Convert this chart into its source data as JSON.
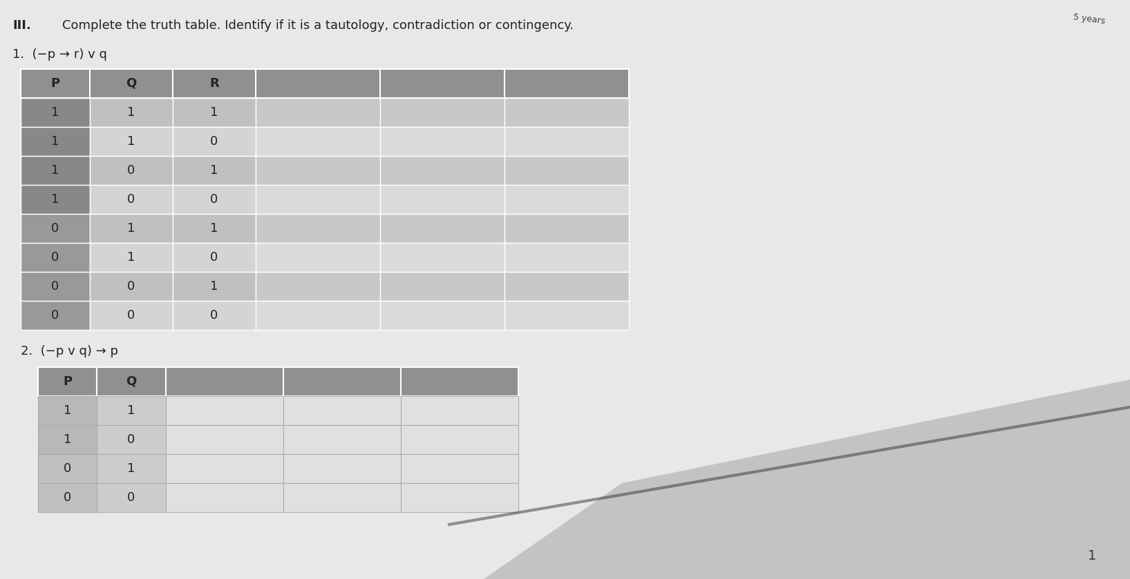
{
  "title_roman": "III.",
  "title_text": "Complete the truth table. Identify if it is a tautology, contradiction or contingency.",
  "problem1_label": "1.  (−p → r) v q",
  "problem2_label": "2.  (−p v q) → p",
  "table1": {
    "headers": [
      "P",
      "Q",
      "R",
      "",
      "",
      ""
    ],
    "num_empty_cols": 3,
    "rows": [
      [
        "1",
        "1",
        "1",
        "",
        "",
        ""
      ],
      [
        "1",
        "1",
        "0",
        "",
        "",
        ""
      ],
      [
        "1",
        "0",
        "1",
        "",
        "",
        ""
      ],
      [
        "1",
        "0",
        "0",
        "",
        "",
        ""
      ],
      [
        "0",
        "1",
        "1",
        "",
        "",
        ""
      ],
      [
        "0",
        "1",
        "0",
        "",
        "",
        ""
      ],
      [
        "0",
        "0",
        "1",
        "",
        "",
        ""
      ],
      [
        "0",
        "0",
        "0",
        "",
        "",
        ""
      ]
    ]
  },
  "table2": {
    "headers": [
      "P",
      "Q",
      "",
      "",
      ""
    ],
    "num_empty_cols": 3,
    "rows": [
      [
        "1",
        "1",
        "",
        "",
        ""
      ],
      [
        "1",
        "0",
        "",
        "",
        ""
      ],
      [
        "0",
        "1",
        "",
        "",
        ""
      ],
      [
        "0",
        "0",
        "",
        "",
        ""
      ]
    ]
  },
  "page_num": "1",
  "bg_paper": "#e8e8e8",
  "bg_page": "#d8d8d8",
  "header_bg": "#909090",
  "p_col_bg_dark": "#888888",
  "p_col_bg_light": "#999999",
  "data_col_odd": "#c0c0c0",
  "data_col_even": "#d4d4d4",
  "empty_col_odd": "#c8c8c8",
  "empty_col_even": "#dadada",
  "table2_p_bg": "#b8b8b8",
  "table2_q_bg": "#cccccc",
  "table2_empty_bg": "#e0e0e0",
  "cell_border": "#ffffff",
  "font_size_title": 13,
  "font_size_label": 13,
  "font_size_cell": 13
}
